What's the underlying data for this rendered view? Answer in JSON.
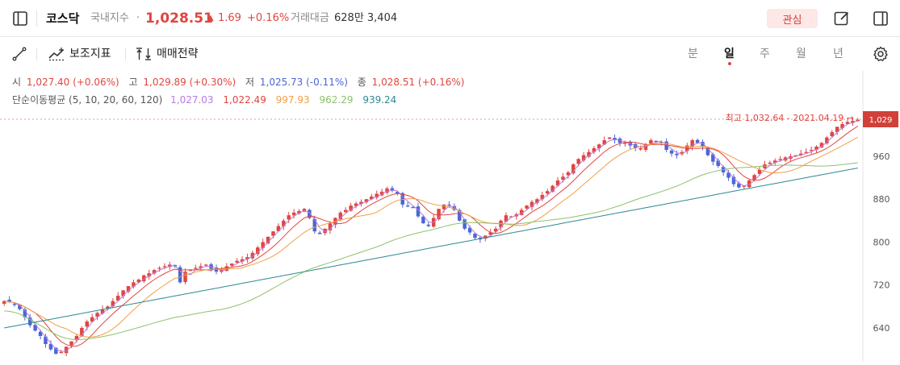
{
  "header": {
    "title": "코스닥",
    "subtitle": "국내지수",
    "sep": "·",
    "price": "1,028.51",
    "change_arrow": "▲",
    "change": "1.69",
    "change_pct": "+0.16%",
    "volume_label": "거래대금",
    "volume_value": "628만 3,404",
    "favorite_label": "관심"
  },
  "toolbar": {
    "indicator_label": "보조지표",
    "strategy_label": "매매전략",
    "periods": [
      "분",
      "일",
      "주",
      "월",
      "년"
    ],
    "active_period": "일"
  },
  "ohlc": {
    "open_label": "시",
    "open_value": "1,027.40 (+0.06%)",
    "high_label": "고",
    "high_value": "1,029.89 (+0.30%)",
    "low_label": "저",
    "low_value": "1,025.73 (-0.11%)",
    "close_label": "종",
    "close_value": "1,028.51 (+0.16%)"
  },
  "ma": {
    "label": "단순이동평균 (5, 10, 20, 60, 120)",
    "values": [
      "1,027.03",
      "1,022.49",
      "997.93",
      "962.29",
      "939.24"
    ],
    "colors": [
      "#b77be0",
      "#e0463e",
      "#f0a048",
      "#8cc26a",
      "#2e8a94"
    ]
  },
  "colors": {
    "up": "#e0463e",
    "down": "#4a66d6",
    "current_bg": "#d2403a"
  },
  "chart_data": {
    "type": "candlestick",
    "y_ticks": [
      640,
      720,
      800,
      880,
      960
    ],
    "ylim": [
      575,
      1058
    ],
    "current_price_label": "1,029",
    "annotation": "최고 1,032.64 - 2021.04.19 →",
    "close_series": [
      690,
      688,
      683,
      675,
      660,
      645,
      635,
      625,
      610,
      600,
      592,
      595,
      605,
      615,
      625,
      640,
      652,
      660,
      668,
      675,
      680,
      690,
      700,
      710,
      718,
      725,
      730,
      738,
      742,
      748,
      752,
      755,
      758,
      755,
      725,
      745,
      748,
      752,
      755,
      758,
      750,
      745,
      748,
      755,
      760,
      765,
      768,
      772,
      780,
      790,
      800,
      810,
      820,
      830,
      840,
      850,
      855,
      858,
      862,
      845,
      820,
      815,
      825,
      835,
      845,
      855,
      860,
      868,
      872,
      875,
      880,
      885,
      890,
      894,
      900,
      896,
      890,
      870,
      868,
      865,
      848,
      835,
      830,
      845,
      862,
      870,
      868,
      860,
      840,
      825,
      818,
      808,
      805,
      812,
      818,
      825,
      840,
      850,
      848,
      852,
      860,
      868,
      875,
      880,
      888,
      895,
      905,
      915,
      922,
      930,
      945,
      955,
      962,
      968,
      975,
      982,
      990,
      995,
      990,
      985,
      985,
      980,
      975,
      975,
      982,
      990,
      988,
      985,
      972,
      965,
      962,
      968,
      980,
      990,
      985,
      978,
      962,
      950,
      942,
      930,
      920,
      908,
      902,
      905,
      915,
      925,
      935,
      945,
      948,
      952,
      955,
      958,
      960,
      962,
      965,
      968,
      972,
      978,
      985,
      995,
      1005,
      1015,
      1020,
      1024,
      1026,
      1028
    ]
  }
}
